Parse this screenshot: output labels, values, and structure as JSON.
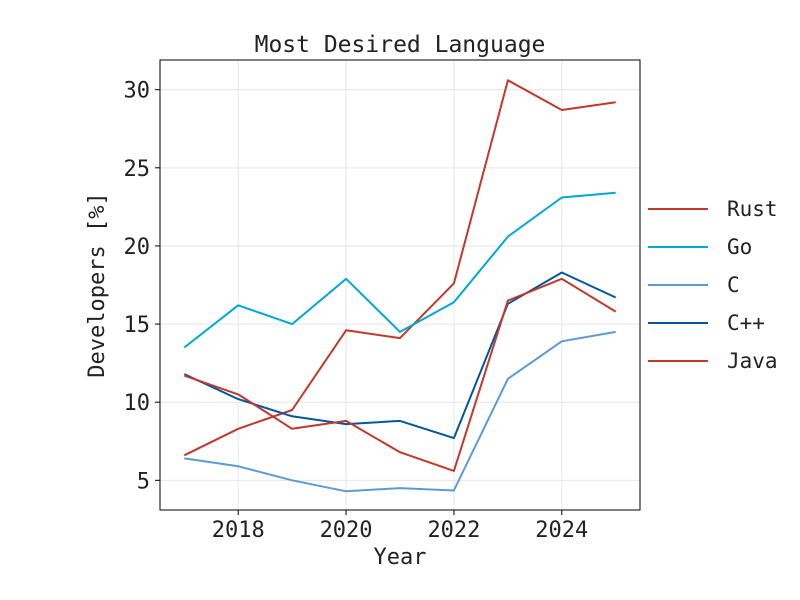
{
  "chart_data": {
    "type": "line",
    "title": "Most Desired Language",
    "xlabel": "Year",
    "ylabel": "Developers [%]",
    "x": [
      2017,
      2018,
      2019,
      2020,
      2021,
      2022,
      2023,
      2024,
      2025
    ],
    "xlim": [
      2016.55,
      2025.45
    ],
    "ylim": [
      3.1,
      31.9
    ],
    "xticks": [
      2018,
      2020,
      2022,
      2024
    ],
    "yticks": [
      5,
      10,
      15,
      20,
      25,
      30
    ],
    "xtick_labels": [
      "2018",
      "2020",
      "2022",
      "2024"
    ],
    "ytick_labels": [
      "5",
      "10",
      "15",
      "20",
      "25",
      "30"
    ],
    "grid": true,
    "legend_position": "right",
    "series": [
      {
        "name": "Rust",
        "color": "#c0392b",
        "values": [
          6.6,
          8.3,
          9.5,
          14.6,
          14.1,
          17.6,
          30.6,
          28.7,
          29.2
        ]
      },
      {
        "name": "Go",
        "color": "#00a8d6",
        "values": [
          13.5,
          16.2,
          15.0,
          17.9,
          14.5,
          16.4,
          20.6,
          23.1,
          23.4
        ]
      },
      {
        "name": "C",
        "color": "#5b9bd5",
        "values": [
          6.4,
          5.9,
          5.0,
          4.3,
          4.5,
          4.35,
          11.5,
          13.9,
          14.5
        ]
      },
      {
        "name": "C++",
        "color": "#0057a0",
        "values": [
          11.8,
          10.2,
          9.1,
          8.6,
          8.8,
          7.7,
          16.3,
          18.3,
          16.7
        ]
      },
      {
        "name": "Java",
        "color": "#c0392b",
        "values": [
          11.7,
          10.5,
          8.3,
          8.8,
          6.8,
          5.6,
          16.5,
          17.9,
          15.8
        ]
      }
    ]
  }
}
